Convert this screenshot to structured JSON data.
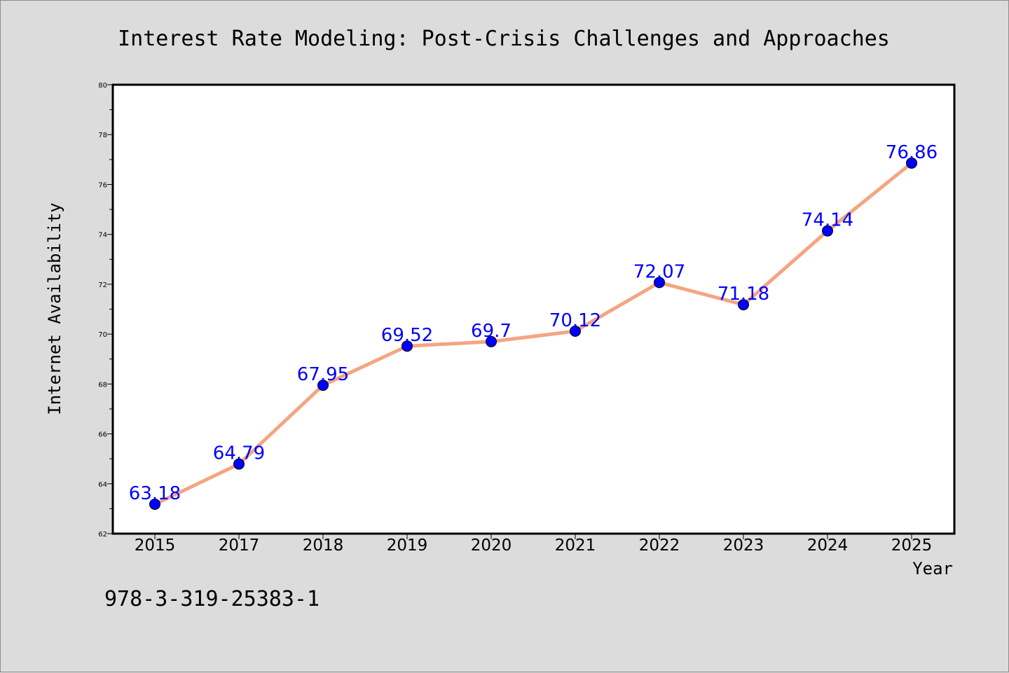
{
  "colors": {
    "background": "#dcdcdc",
    "line": "#f4a582",
    "marker": "#0000ff",
    "data_label": "#0000ff"
  },
  "footer": {
    "isbn": "978-3-319-25383-1"
  },
  "chart_data": {
    "type": "line",
    "title": "Interest Rate Modeling: Post-Crisis Challenges and Approaches",
    "xlabel": "Year",
    "ylabel": "Internet Availability",
    "categories": [
      "2015",
      "2017",
      "2018",
      "2019",
      "2020",
      "2021",
      "2022",
      "2023",
      "2024",
      "2025"
    ],
    "series": [
      {
        "values": [
          63.18,
          64.79,
          67.95,
          69.52,
          69.7,
          70.12,
          72.07,
          71.18,
          74.14,
          76.86
        ],
        "labels": [
          "63.18",
          "64.79",
          "67.95",
          "69.52",
          "69.7",
          "70.12",
          "72.07",
          "71.18",
          "74.14",
          "76.86"
        ]
      }
    ],
    "ylim": [
      62,
      80
    ],
    "yticks": [
      62,
      64,
      66,
      68,
      70,
      72,
      74,
      76,
      78,
      80
    ],
    "grid": false,
    "legend": "none"
  }
}
